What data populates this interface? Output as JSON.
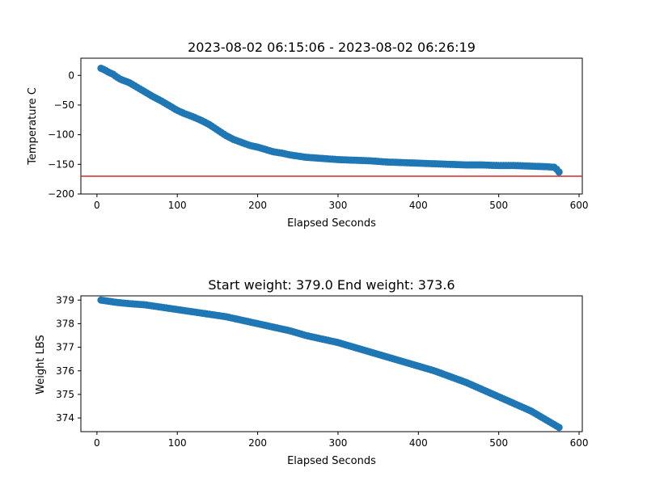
{
  "chart_data": [
    {
      "type": "scatter",
      "title": "2023-08-02 06:15:06 - 2023-08-02 06:26:19",
      "xlabel": "Elapsed Seconds",
      "ylabel": "Temperature C",
      "xlim": [
        -20,
        604
      ],
      "ylim": [
        -200,
        29
      ],
      "xticks": [
        0,
        100,
        200,
        300,
        400,
        500,
        600
      ],
      "yticks": [
        0,
        -50,
        -100,
        -150,
        -200
      ],
      "ytick_labels": [
        "0",
        "−50",
        "−100",
        "−150",
        "−200"
      ],
      "marker_color": "#1f77b4",
      "reference_line": {
        "y": -170,
        "color": "#d62728"
      },
      "series_keypoints": [
        [
          5,
          12
        ],
        [
          10,
          9
        ],
        [
          15,
          5
        ],
        [
          20,
          2
        ],
        [
          25,
          -3
        ],
        [
          30,
          -7
        ],
        [
          40,
          -12
        ],
        [
          50,
          -20
        ],
        [
          60,
          -28
        ],
        [
          70,
          -36
        ],
        [
          80,
          -43
        ],
        [
          90,
          -51
        ],
        [
          100,
          -59
        ],
        [
          110,
          -65
        ],
        [
          120,
          -70
        ],
        [
          130,
          -76
        ],
        [
          140,
          -83
        ],
        [
          150,
          -92
        ],
        [
          160,
          -101
        ],
        [
          170,
          -108
        ],
        [
          180,
          -113
        ],
        [
          190,
          -118
        ],
        [
          200,
          -121
        ],
        [
          210,
          -125
        ],
        [
          220,
          -129
        ],
        [
          230,
          -131
        ],
        [
          240,
          -134
        ],
        [
          250,
          -136
        ],
        [
          260,
          -138
        ],
        [
          270,
          -139
        ],
        [
          280,
          -140
        ],
        [
          290,
          -141
        ],
        [
          300,
          -142
        ],
        [
          320,
          -143
        ],
        [
          340,
          -144
        ],
        [
          360,
          -146
        ],
        [
          380,
          -147
        ],
        [
          400,
          -148
        ],
        [
          420,
          -149
        ],
        [
          440,
          -150
        ],
        [
          460,
          -151
        ],
        [
          480,
          -151
        ],
        [
          500,
          -152
        ],
        [
          520,
          -152
        ],
        [
          540,
          -153
        ],
        [
          560,
          -154
        ],
        [
          570,
          -155
        ],
        [
          575,
          -163
        ]
      ]
    },
    {
      "type": "scatter",
      "title": "Start weight: 379.0 End weight: 373.6",
      "xlabel": "Elapsed Seconds",
      "ylabel": "Weight LBS",
      "xlim": [
        -20,
        604
      ],
      "ylim": [
        373.42,
        379.18
      ],
      "xticks": [
        0,
        100,
        200,
        300,
        400,
        500,
        600
      ],
      "yticks": [
        374,
        375,
        376,
        377,
        378,
        379
      ],
      "marker_color": "#1f77b4",
      "series_keypoints": [
        [
          5,
          379.0
        ],
        [
          15,
          378.95
        ],
        [
          25,
          378.9
        ],
        [
          40,
          378.85
        ],
        [
          60,
          378.8
        ],
        [
          80,
          378.7
        ],
        [
          100,
          378.6
        ],
        [
          120,
          378.5
        ],
        [
          140,
          378.4
        ],
        [
          160,
          378.3
        ],
        [
          180,
          378.15
        ],
        [
          200,
          378.0
        ],
        [
          220,
          377.85
        ],
        [
          240,
          377.7
        ],
        [
          260,
          377.5
        ],
        [
          280,
          377.35
        ],
        [
          300,
          377.2
        ],
        [
          320,
          377.0
        ],
        [
          340,
          376.8
        ],
        [
          360,
          376.6
        ],
        [
          380,
          376.4
        ],
        [
          400,
          376.2
        ],
        [
          420,
          376.0
        ],
        [
          440,
          375.75
        ],
        [
          460,
          375.5
        ],
        [
          480,
          375.2
        ],
        [
          500,
          374.9
        ],
        [
          520,
          374.6
        ],
        [
          540,
          374.3
        ],
        [
          560,
          373.9
        ],
        [
          575,
          373.6
        ]
      ]
    }
  ]
}
